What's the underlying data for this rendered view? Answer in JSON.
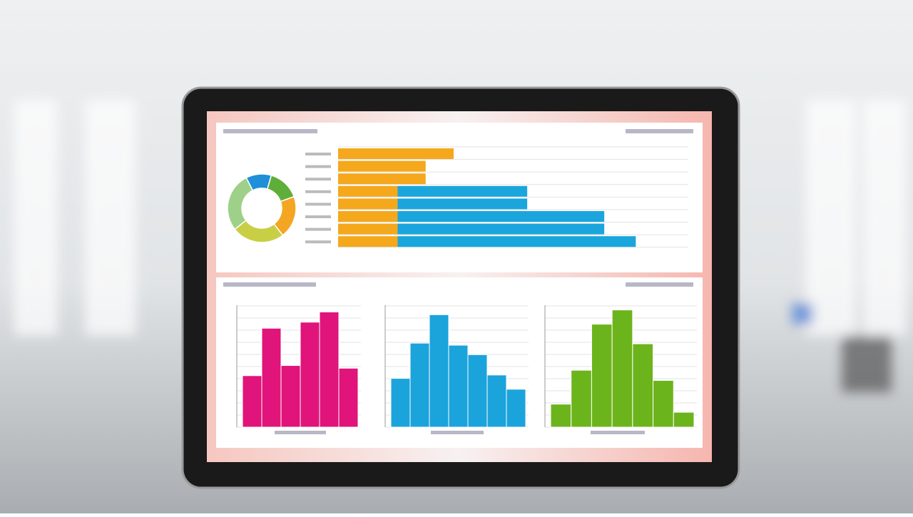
{
  "chart_data": [
    {
      "type": "donut",
      "values": [
        12,
        15,
        20,
        25,
        28
      ],
      "colors": [
        "#1e8fd8",
        "#5fae3a",
        "#f4a623",
        "#c9cf45",
        "#9fd08a"
      ]
    },
    {
      "type": "hbar",
      "xlim": [
        0,
        100
      ],
      "series": [
        {
          "color": "#f5a81c",
          "values": [
            33,
            25,
            25,
            17,
            17,
            17,
            17,
            17
          ]
        },
        {
          "color": "#1aa6dc",
          "values": [
            0,
            0,
            0,
            37,
            37,
            59,
            59,
            68
          ]
        }
      ]
    },
    {
      "type": "bar",
      "ylim": [
        0,
        180
      ],
      "color": "#e0147a",
      "values": [
        76,
        146,
        91,
        155,
        170,
        87
      ]
    },
    {
      "type": "bar",
      "ylim": [
        0,
        180
      ],
      "color": "#1ba3dc",
      "values": [
        72,
        124,
        166,
        121,
        107,
        77,
        56
      ]
    },
    {
      "type": "bar",
      "ylim": [
        0,
        180
      ],
      "color": "#6cb41c",
      "values": [
        34,
        84,
        152,
        173,
        123,
        69,
        22
      ]
    }
  ]
}
